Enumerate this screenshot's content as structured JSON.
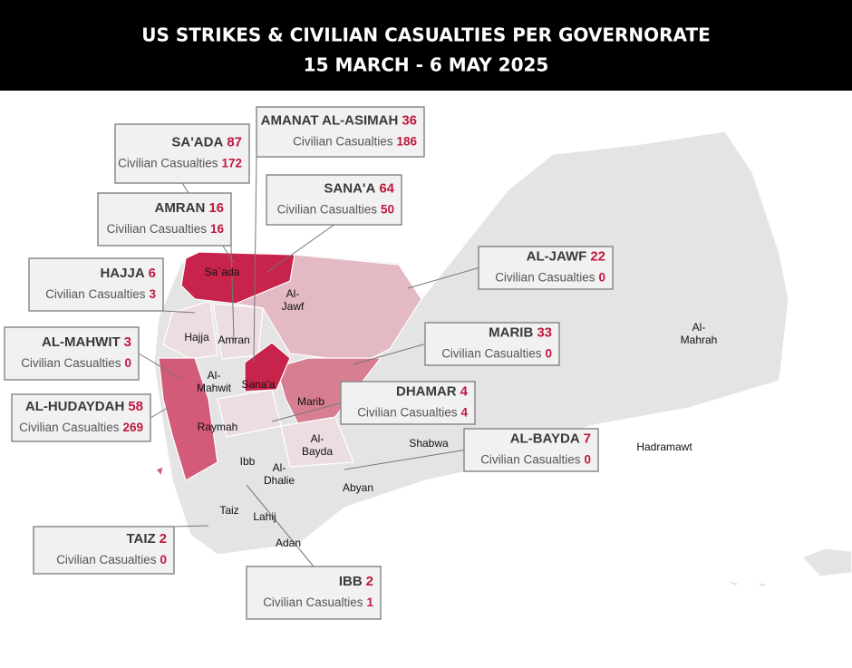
{
  "header": {
    "title": "US STRIKES & CIVILIAN CASUALTIES PER GOVERNORATE",
    "subtitle": "15 MARCH - 6 MAY  2025"
  },
  "callouts": [
    {
      "name": "SA'ADA",
      "strikes": "87",
      "label": "Civilian Casualties",
      "casualties": "172"
    },
    {
      "name": "AMANAT AL-ASIMAH",
      "strikes": "36",
      "label": "Civilian Casualties",
      "casualties": "186"
    },
    {
      "name": "AMRAN",
      "strikes": "16",
      "label": "Civilian Casualties",
      "casualties": "16"
    },
    {
      "name": "SANA'A",
      "strikes": "64",
      "label": "Civilian Casualties",
      "casualties": "50"
    },
    {
      "name": "HAJJA",
      "strikes": "6",
      "label": "Civilian Casualties",
      "casualties": "3"
    },
    {
      "name": "AL-JAWF",
      "strikes": "22",
      "label": "Civilian Casualties",
      "casualties": "0"
    },
    {
      "name": "AL-MAHWIT",
      "strikes": "3",
      "label": "Civilian Casualties",
      "casualties": "0"
    },
    {
      "name": "MARIB",
      "strikes": "33",
      "label": "Civilian Casualties",
      "casualties": "0"
    },
    {
      "name": "AL-HUDAYDAH",
      "strikes": "58",
      "label": "Civilian Casualties",
      "casualties": "269"
    },
    {
      "name": "DHAMAR",
      "strikes": "4",
      "label": "Civilian Casualties",
      "casualties": "4"
    },
    {
      "name": "AL-BAYDA",
      "strikes": "7",
      "label": "Civilian Casualties",
      "casualties": "0"
    },
    {
      "name": "TAIZ",
      "strikes": "2",
      "label": "Civilian Casualties",
      "casualties": "0"
    },
    {
      "name": "IBB",
      "strikes": "2",
      "label": "Civilian Casualties",
      "casualties": "1"
    }
  ],
  "map_labels": [
    {
      "lines": [
        "Sa`ada"
      ]
    },
    {
      "lines": [
        "Al-",
        "Jawf"
      ]
    },
    {
      "lines": [
        "Hajja"
      ]
    },
    {
      "lines": [
        "Amran"
      ]
    },
    {
      "lines": [
        "Al-",
        "Mahwit"
      ]
    },
    {
      "lines": [
        "Sana'a"
      ]
    },
    {
      "lines": [
        "Marib"
      ]
    },
    {
      "lines": [
        "Raymah"
      ]
    },
    {
      "lines": [
        "Al-",
        "Bayda"
      ]
    },
    {
      "lines": [
        "Ibb"
      ]
    },
    {
      "lines": [
        "Al-",
        "Dhalie"
      ]
    },
    {
      "lines": [
        "Taiz"
      ]
    },
    {
      "lines": [
        "Lahij"
      ]
    },
    {
      "lines": [
        "Adan"
      ]
    },
    {
      "lines": [
        "Abyan"
      ]
    },
    {
      "lines": [
        "Shabwa"
      ]
    },
    {
      "lines": [
        "Hadramawt"
      ]
    },
    {
      "lines": [
        "Al-",
        "Mahrah"
      ]
    }
  ]
}
